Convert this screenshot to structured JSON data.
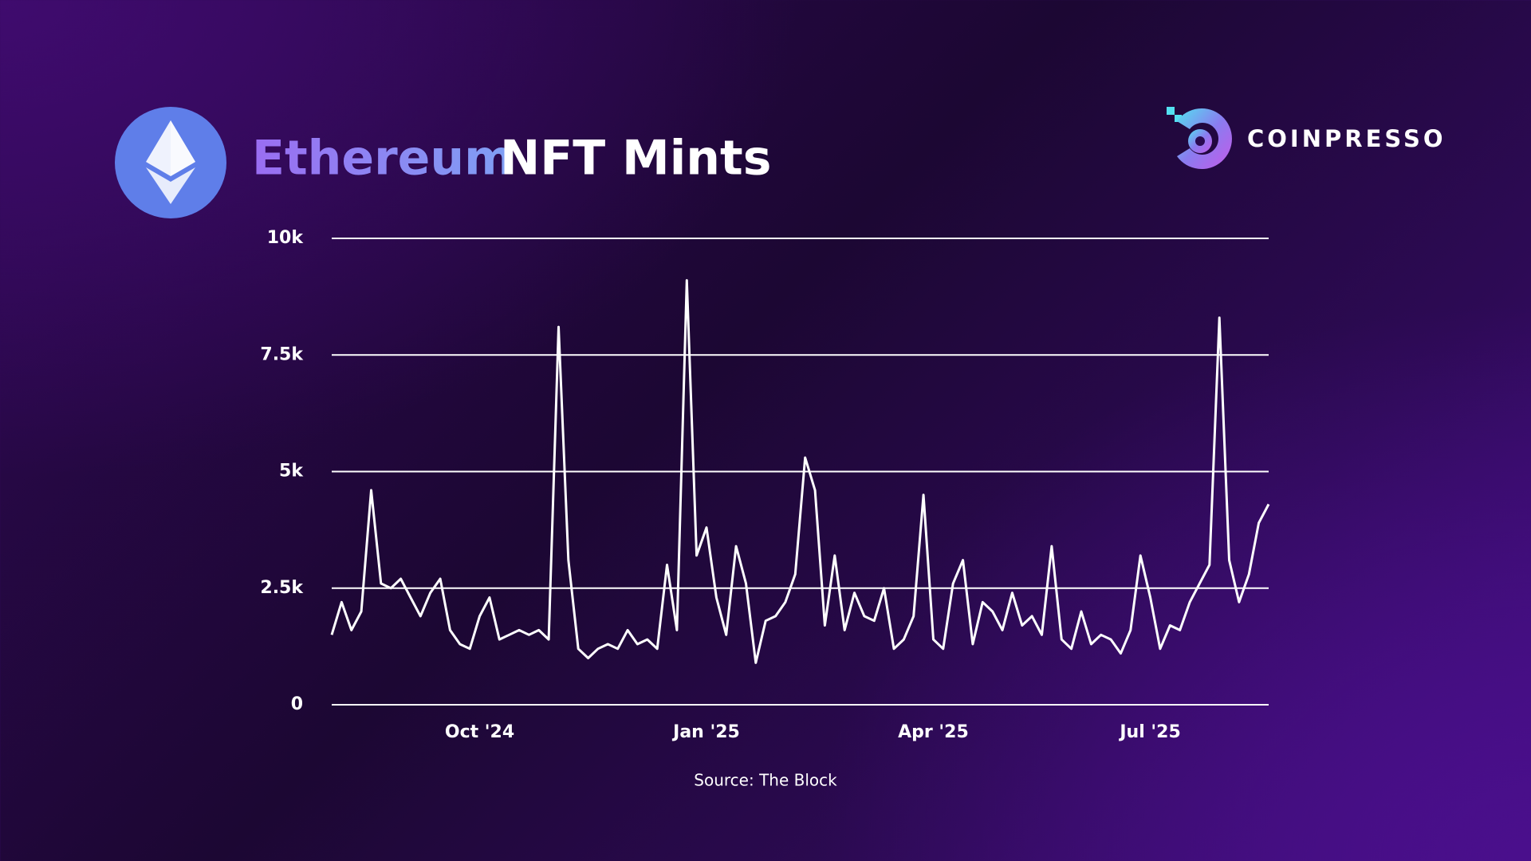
{
  "brand": "COINPRESSO",
  "chart_data": {
    "type": "line",
    "title": [
      "Ethereum",
      "NFT Mints"
    ],
    "source": "Source: The Block",
    "color": "#ffffff",
    "grid": true,
    "ylim": [
      0,
      10000
    ],
    "yticks": [
      0,
      {
        "value": 2500,
        "label": "2.5k"
      },
      {
        "value": 5000,
        "label": "5k"
      },
      {
        "value": 7500,
        "label": "7.5k"
      },
      {
        "value": 10000,
        "label": "10k"
      }
    ],
    "categories": [
      null,
      null,
      null,
      null,
      null,
      null,
      null,
      null,
      null,
      null,
      null,
      null,
      null,
      null,
      null,
      "Oct '24",
      null,
      null,
      null,
      null,
      null,
      null,
      null,
      null,
      null,
      null,
      null,
      null,
      null,
      null,
      null,
      null,
      null,
      null,
      null,
      null,
      null,
      null,
      "Jan '25",
      null,
      null,
      null,
      null,
      null,
      null,
      null,
      null,
      null,
      null,
      null,
      null,
      null,
      null,
      null,
      null,
      null,
      null,
      null,
      null,
      null,
      null,
      "Apr '25",
      null,
      null,
      null,
      null,
      null,
      null,
      null,
      null,
      null,
      null,
      null,
      null,
      null,
      null,
      null,
      null,
      null,
      null,
      null,
      null,
      null,
      "Jul '25",
      null,
      null,
      null,
      null,
      null,
      null,
      null,
      null,
      null,
      null,
      null,
      null
    ],
    "values": [
      1500,
      2200,
      1600,
      2000,
      4600,
      2600,
      2500,
      2700,
      2300,
      1900,
      2400,
      2700,
      1600,
      1300,
      1200,
      1900,
      2300,
      1400,
      1500,
      1600,
      1500,
      1600,
      1400,
      8100,
      3100,
      1200,
      1000,
      1200,
      1300,
      1200,
      1600,
      1300,
      1400,
      1200,
      3000,
      1600,
      9100,
      3200,
      3800,
      2300,
      1500,
      3400,
      2600,
      900,
      1800,
      1900,
      2200,
      2800,
      5300,
      4600,
      1700,
      3200,
      1600,
      2400,
      1900,
      1800,
      2500,
      1200,
      1400,
      1900,
      4500,
      1400,
      1200,
      2600,
      3100,
      1300,
      2200,
      2000,
      1600,
      2400,
      1700,
      1900,
      1500,
      3400,
      1400,
      1200,
      2000,
      1300,
      1500,
      1400,
      1100,
      1600,
      3200,
      2300,
      1200,
      1700,
      1600,
      2200,
      2600,
      3000,
      8300,
      3100,
      2200,
      2800,
      3900,
      4300
    ]
  }
}
